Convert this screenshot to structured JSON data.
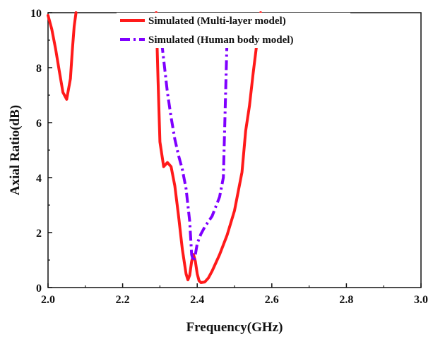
{
  "chart_data": {
    "type": "line",
    "title": "",
    "xlabel": "Frequency(GHz)",
    "ylabel": "Axial Ratio(dB)",
    "xlim": [
      2.0,
      3.0
    ],
    "ylim": [
      0,
      10
    ],
    "xticks": [
      "2.0",
      "2.2",
      "2.4",
      "2.6",
      "2.8",
      "3.0"
    ],
    "yticks": [
      "0",
      "2",
      "4",
      "6",
      "8",
      "10"
    ],
    "grid": false,
    "legend_position": "top-center",
    "series": [
      {
        "name": "Simulated (Multi-layer model)",
        "color": "#ff1a1a",
        "dash": "solid",
        "points": [
          [
            2.0,
            9.9
          ],
          [
            2.01,
            9.4
          ],
          [
            2.02,
            8.7
          ],
          [
            2.03,
            7.9
          ],
          [
            2.04,
            7.1
          ],
          [
            2.05,
            6.85
          ],
          [
            2.06,
            7.6
          ],
          [
            2.065,
            8.6
          ],
          [
            2.07,
            9.5
          ],
          [
            2.075,
            10.0
          ],
          null,
          [
            2.29,
            10.0
          ],
          [
            2.295,
            7.5
          ],
          [
            2.3,
            5.3
          ],
          [
            2.31,
            4.4
          ],
          [
            2.32,
            4.55
          ],
          [
            2.33,
            4.4
          ],
          [
            2.34,
            3.7
          ],
          [
            2.35,
            2.6
          ],
          [
            2.36,
            1.4
          ],
          [
            2.37,
            0.5
          ],
          [
            2.375,
            0.28
          ],
          [
            2.38,
            0.45
          ],
          [
            2.385,
            0.95
          ],
          [
            2.39,
            1.2
          ],
          [
            2.395,
            0.95
          ],
          [
            2.4,
            0.5
          ],
          [
            2.405,
            0.25
          ],
          [
            2.41,
            0.18
          ],
          [
            2.42,
            0.2
          ],
          [
            2.43,
            0.35
          ],
          [
            2.44,
            0.6
          ],
          [
            2.46,
            1.2
          ],
          [
            2.48,
            1.9
          ],
          [
            2.5,
            2.8
          ],
          [
            2.52,
            4.2
          ],
          [
            2.53,
            5.7
          ],
          [
            2.54,
            6.6
          ],
          [
            2.55,
            7.8
          ],
          [
            2.56,
            8.9
          ],
          [
            2.57,
            10.0
          ]
        ]
      },
      {
        "name": "Simulated (Human body model)",
        "color": "#7f00ff",
        "dash": "dashdot",
        "points": [
          [
            2.305,
            8.9
          ],
          [
            2.31,
            8.3
          ],
          [
            2.32,
            7.1
          ],
          [
            2.33,
            6.2
          ],
          [
            2.34,
            5.4
          ],
          [
            2.35,
            4.8
          ],
          [
            2.36,
            4.3
          ],
          [
            2.37,
            3.6
          ],
          [
            2.38,
            2.4
          ],
          [
            2.385,
            1.2
          ],
          [
            2.39,
            0.95
          ],
          [
            2.395,
            1.2
          ],
          [
            2.4,
            1.6
          ],
          [
            2.41,
            1.95
          ],
          [
            2.42,
            2.2
          ],
          [
            2.44,
            2.6
          ],
          [
            2.46,
            3.3
          ],
          [
            2.47,
            4.0
          ],
          [
            2.475,
            6.5
          ],
          [
            2.48,
            9.0
          ],
          [
            2.485,
            10.0
          ]
        ]
      }
    ]
  }
}
